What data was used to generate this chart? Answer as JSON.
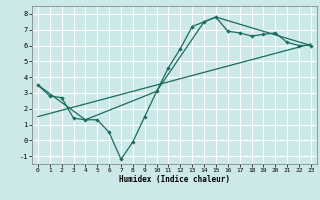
{
  "title": "",
  "xlabel": "Humidex (Indice chaleur)",
  "xlim": [
    -0.5,
    23.5
  ],
  "ylim": [
    -1.5,
    8.5
  ],
  "xticks": [
    0,
    1,
    2,
    3,
    4,
    5,
    6,
    7,
    8,
    9,
    10,
    11,
    12,
    13,
    14,
    15,
    16,
    17,
    18,
    19,
    20,
    21,
    22,
    23
  ],
  "yticks": [
    -1,
    0,
    1,
    2,
    3,
    4,
    5,
    6,
    7,
    8
  ],
  "bg_color": "#cce8e8",
  "grid_color": "#ffffff",
  "line_color": "#1a6b60",
  "curve1_x": [
    0,
    1,
    2,
    3,
    4,
    5,
    6,
    7,
    8,
    9,
    10,
    11,
    12,
    13,
    14,
    15,
    16,
    17,
    18,
    19,
    20,
    21,
    22,
    23
  ],
  "curve1_y": [
    3.5,
    2.8,
    2.7,
    1.4,
    1.3,
    1.3,
    0.5,
    -1.2,
    -0.1,
    1.5,
    3.1,
    4.6,
    5.8,
    7.2,
    7.5,
    7.8,
    6.9,
    6.8,
    6.6,
    6.7,
    6.8,
    6.2,
    6.0,
    6.0
  ],
  "curve2_x": [
    0,
    4,
    10,
    14,
    15,
    23
  ],
  "curve2_y": [
    3.5,
    1.3,
    3.1,
    7.5,
    7.8,
    6.0
  ],
  "trend_x": [
    0,
    23
  ],
  "trend_y": [
    1.5,
    6.1
  ]
}
